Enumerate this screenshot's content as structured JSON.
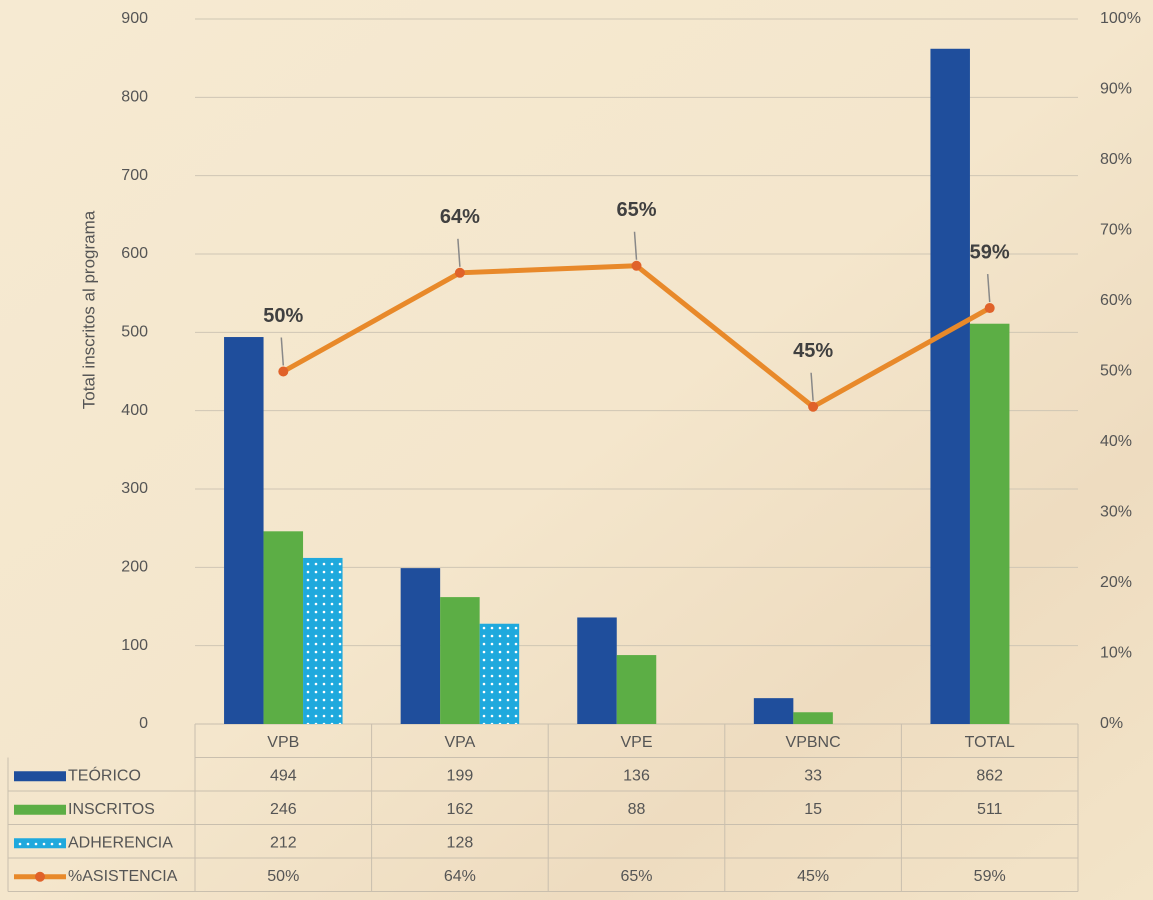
{
  "chart_data": {
    "type": "bar",
    "y_label": "Total inscritos al programa",
    "categories": [
      "VPB",
      "VPA",
      "VPE",
      "VPBNC",
      "TOTAL"
    ],
    "series": [
      {
        "name": "TEÓRICO",
        "type": "bar",
        "color": "#1f4e9c",
        "values": [
          494,
          199,
          136,
          33,
          862
        ]
      },
      {
        "name": "INSCRITOS",
        "type": "bar",
        "color": "#5cae45",
        "values": [
          246,
          162,
          88,
          15,
          511
        ]
      },
      {
        "name": "ADHERENCIA",
        "type": "bar",
        "color": "#1fa9dd",
        "values": [
          212,
          128,
          null,
          null,
          null
        ]
      },
      {
        "name": "%ASISTENCIA",
        "type": "line",
        "axis": "y2",
        "color": "#e8892a",
        "values": [
          50,
          64,
          65,
          45,
          59
        ],
        "value_labels": [
          "50%",
          "64%",
          "65%",
          "45%",
          "59%"
        ]
      }
    ],
    "ylim": [
      0,
      900
    ],
    "yticks": [
      0,
      100,
      200,
      300,
      400,
      500,
      600,
      700,
      800,
      900
    ],
    "y2lim": [
      0,
      100
    ],
    "y2ticks": [
      {
        "value": 0,
        "label": "0%"
      },
      {
        "value": 10,
        "label": "10%"
      },
      {
        "value": 20,
        "label": "20%"
      },
      {
        "value": 30,
        "label": "30%"
      },
      {
        "value": 40,
        "label": "40%"
      },
      {
        "value": 50,
        "label": "50%"
      },
      {
        "value": 60,
        "label": "60%"
      },
      {
        "value": 70,
        "label": "70%"
      },
      {
        "value": 80,
        "label": "80%"
      },
      {
        "value": 90,
        "label": "90%"
      },
      {
        "value": 100,
        "label": "100%"
      }
    ],
    "grid": true
  }
}
